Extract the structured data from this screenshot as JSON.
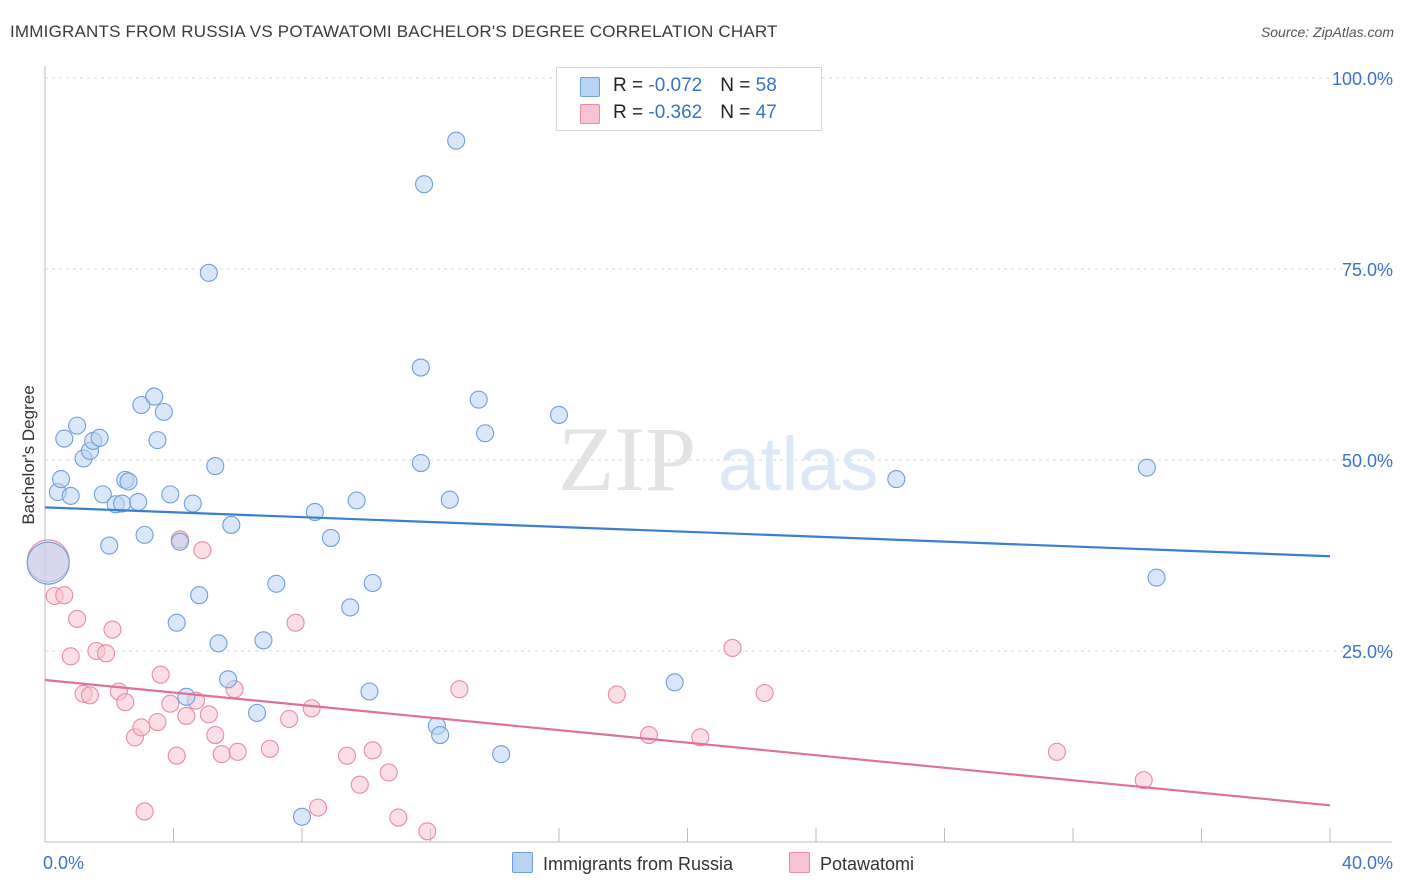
{
  "title": "IMMIGRANTS FROM RUSSIA VS POTAWATOMI BACHELOR'S DEGREE CORRELATION CHART",
  "source": "Source: ZipAtlas.com",
  "watermark": {
    "zip": "ZIP",
    "atlas": "atlas"
  },
  "colors": {
    "blue_fill": "#b9d3f3",
    "blue_stroke": "#6f9fd8",
    "blue_line": "#3a7fd0",
    "pink_fill": "#f7c3d2",
    "pink_stroke": "#e98ba6",
    "pink_line": "#e0709a",
    "axis_text": "#3b73c6",
    "grid": "#d9d9d9"
  },
  "stats": {
    "rows": [
      {
        "r_label": "R = ",
        "r_value": "-0.072",
        "n_label": "N = ",
        "n_value": "58",
        "color": "#b9d3f3",
        "border": "#6f9fd8"
      },
      {
        "r_label": "R = ",
        "r_value": "-0.362",
        "n_label": "N = ",
        "n_value": "47",
        "color": "#f7c3d2",
        "border": "#e98ba6"
      }
    ]
  },
  "legend": [
    {
      "label": "Immigrants from Russia",
      "color": "#b9d3f3",
      "border": "#6f9fd8"
    },
    {
      "label": "Potawatomi",
      "color": "#f7c3d2",
      "border": "#e98ba6"
    }
  ],
  "chart_data": {
    "type": "scatter",
    "title": "IMMIGRANTS FROM RUSSIA VS POTAWATOMI BACHELOR'S DEGREE CORRELATION CHART",
    "xlabel": "",
    "ylabel": "Bachelor's Degree",
    "xlim": [
      0,
      40
    ],
    "ylim": [
      0,
      100
    ],
    "x_tick_labels": [
      "0.0%",
      "40.0%"
    ],
    "y_tick_labels": [
      "100.0%",
      "75.0%",
      "50.0%",
      "25.0%"
    ],
    "y_ticks": [
      100,
      75,
      50,
      25
    ],
    "grid": true,
    "legend_position": "bottom",
    "series": [
      {
        "name": "Immigrants from Russia",
        "trend": {
          "x": [
            0,
            40
          ],
          "y": [
            43.8,
            37.4
          ]
        },
        "points": [
          {
            "x": 0.1,
            "y": 36.5,
            "big": true
          },
          {
            "x": 0.4,
            "y": 45.8
          },
          {
            "x": 0.5,
            "y": 47.5
          },
          {
            "x": 0.6,
            "y": 52.8
          },
          {
            "x": 0.8,
            "y": 45.3
          },
          {
            "x": 1.0,
            "y": 54.5
          },
          {
            "x": 1.2,
            "y": 50.2
          },
          {
            "x": 1.4,
            "y": 51.2
          },
          {
            "x": 1.5,
            "y": 52.5
          },
          {
            "x": 1.7,
            "y": 52.9
          },
          {
            "x": 1.8,
            "y": 45.5
          },
          {
            "x": 2.0,
            "y": 38.8
          },
          {
            "x": 2.2,
            "y": 44.2
          },
          {
            "x": 2.4,
            "y": 44.3
          },
          {
            "x": 2.5,
            "y": 47.4
          },
          {
            "x": 2.6,
            "y": 47.2
          },
          {
            "x": 2.9,
            "y": 44.5
          },
          {
            "x": 3.0,
            "y": 57.2
          },
          {
            "x": 3.1,
            "y": 40.2
          },
          {
            "x": 3.4,
            "y": 58.3
          },
          {
            "x": 3.5,
            "y": 52.6
          },
          {
            "x": 3.7,
            "y": 56.3
          },
          {
            "x": 3.9,
            "y": 45.5
          },
          {
            "x": 4.1,
            "y": 28.7
          },
          {
            "x": 4.2,
            "y": 39.3
          },
          {
            "x": 4.4,
            "y": 19.0
          },
          {
            "x": 4.6,
            "y": 44.3
          },
          {
            "x": 4.8,
            "y": 32.3
          },
          {
            "x": 5.1,
            "y": 74.5
          },
          {
            "x": 5.3,
            "y": 49.2
          },
          {
            "x": 5.4,
            "y": 26.0
          },
          {
            "x": 5.7,
            "y": 21.3
          },
          {
            "x": 5.8,
            "y": 41.5
          },
          {
            "x": 6.6,
            "y": 16.9
          },
          {
            "x": 6.8,
            "y": 26.4
          },
          {
            "x": 7.2,
            "y": 33.8
          },
          {
            "x": 8.0,
            "y": 3.3
          },
          {
            "x": 8.4,
            "y": 43.2
          },
          {
            "x": 8.9,
            "y": 39.8
          },
          {
            "x": 9.5,
            "y": 30.7
          },
          {
            "x": 9.7,
            "y": 44.7
          },
          {
            "x": 10.1,
            "y": 19.7
          },
          {
            "x": 10.2,
            "y": 33.9
          },
          {
            "x": 11.7,
            "y": 62.1
          },
          {
            "x": 11.7,
            "y": 49.6
          },
          {
            "x": 11.8,
            "y": 86.1
          },
          {
            "x": 12.2,
            "y": 15.2
          },
          {
            "x": 12.3,
            "y": 14.0
          },
          {
            "x": 12.6,
            "y": 44.8
          },
          {
            "x": 12.8,
            "y": 91.8
          },
          {
            "x": 13.5,
            "y": 57.9
          },
          {
            "x": 13.7,
            "y": 53.5
          },
          {
            "x": 14.2,
            "y": 11.5
          },
          {
            "x": 16.0,
            "y": 55.9
          },
          {
            "x": 19.6,
            "y": 20.9
          },
          {
            "x": 26.5,
            "y": 47.5
          },
          {
            "x": 34.3,
            "y": 49.0
          },
          {
            "x": 34.6,
            "y": 34.6
          }
        ]
      },
      {
        "name": "Potawatomi",
        "trend": {
          "x": [
            0,
            40
          ],
          "y": [
            21.2,
            4.8
          ]
        },
        "points": [
          {
            "x": 0.1,
            "y": 36.8,
            "big": true
          },
          {
            "x": 0.3,
            "y": 32.2
          },
          {
            "x": 0.6,
            "y": 32.3
          },
          {
            "x": 0.8,
            "y": 24.3
          },
          {
            "x": 1.0,
            "y": 29.2
          },
          {
            "x": 1.2,
            "y": 19.4
          },
          {
            "x": 1.4,
            "y": 19.2
          },
          {
            "x": 1.6,
            "y": 25.0
          },
          {
            "x": 1.9,
            "y": 24.7
          },
          {
            "x": 2.1,
            "y": 27.8
          },
          {
            "x": 2.3,
            "y": 19.7
          },
          {
            "x": 2.5,
            "y": 18.3
          },
          {
            "x": 2.8,
            "y": 13.7
          },
          {
            "x": 3.0,
            "y": 15.0
          },
          {
            "x": 3.1,
            "y": 4.0
          },
          {
            "x": 3.5,
            "y": 15.7
          },
          {
            "x": 3.6,
            "y": 21.9
          },
          {
            "x": 3.9,
            "y": 18.1
          },
          {
            "x": 4.1,
            "y": 11.3
          },
          {
            "x": 4.2,
            "y": 39.6
          },
          {
            "x": 4.4,
            "y": 16.5
          },
          {
            "x": 4.7,
            "y": 18.5
          },
          {
            "x": 4.9,
            "y": 38.2
          },
          {
            "x": 5.1,
            "y": 16.7
          },
          {
            "x": 5.3,
            "y": 14.0
          },
          {
            "x": 5.5,
            "y": 11.5
          },
          {
            "x": 5.9,
            "y": 20.0
          },
          {
            "x": 6.0,
            "y": 11.8
          },
          {
            "x": 7.0,
            "y": 12.2
          },
          {
            "x": 7.6,
            "y": 16.1
          },
          {
            "x": 7.8,
            "y": 28.7
          },
          {
            "x": 8.3,
            "y": 17.5
          },
          {
            "x": 8.5,
            "y": 4.5
          },
          {
            "x": 9.4,
            "y": 11.3
          },
          {
            "x": 9.8,
            "y": 7.5
          },
          {
            "x": 10.2,
            "y": 12.0
          },
          {
            "x": 10.7,
            "y": 9.1
          },
          {
            "x": 11.0,
            "y": 3.2
          },
          {
            "x": 11.9,
            "y": 1.4
          },
          {
            "x": 12.9,
            "y": 20.0
          },
          {
            "x": 17.8,
            "y": 19.3
          },
          {
            "x": 18.8,
            "y": 14.0
          },
          {
            "x": 20.4,
            "y": 13.7
          },
          {
            "x": 21.4,
            "y": 25.4
          },
          {
            "x": 22.4,
            "y": 19.5
          },
          {
            "x": 31.5,
            "y": 11.8
          },
          {
            "x": 34.2,
            "y": 8.1
          }
        ]
      }
    ]
  }
}
